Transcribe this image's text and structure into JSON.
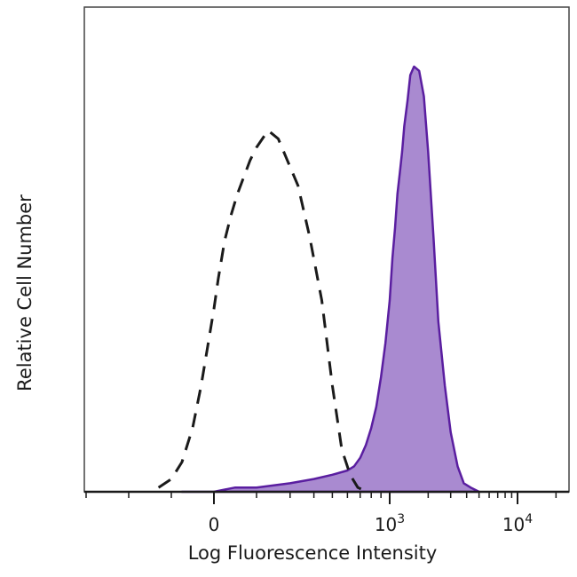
{
  "chart_data": {
    "type": "area",
    "xlabel": "Log Fluorescence Intensity",
    "ylabel": "Relative Cell Number",
    "x_scale": "biexponential",
    "ylim": [
      0,
      100
    ],
    "x_ticks": [
      {
        "base": "0",
        "exp": "",
        "value": 0
      },
      {
        "base": "10",
        "exp": "3",
        "value": 1000
      },
      {
        "base": "10",
        "exp": "4",
        "value": 10000
      }
    ],
    "grid": false,
    "legend": "none",
    "colors": {
      "fill": "#a98ad0",
      "stroke": "#5a1ea0",
      "control": "#1a1a1a",
      "axis": "#1a1a1a",
      "frame": "#444444"
    },
    "series": [
      {
        "style": "dashed",
        "x": [
          -260,
          -200,
          -150,
          -100,
          -60,
          -20,
          0,
          20,
          50,
          80,
          110,
          140,
          170,
          200,
          230,
          260,
          290,
          330,
          380,
          440,
          500,
          560,
          620,
          680,
          760
        ],
        "y": [
          1,
          3,
          7,
          15,
          25,
          37,
          43,
          50,
          59,
          65,
          70,
          74,
          78,
          81,
          85,
          83,
          78,
          72,
          60,
          45,
          25,
          10,
          4,
          1,
          0
        ]
      },
      {
        "style": "filled",
        "x": [
          -150,
          0,
          100,
          200,
          300,
          400,
          500,
          600,
          650,
          700,
          750,
          800,
          850,
          900,
          950,
          1000,
          1050,
          1100,
          1150,
          1200,
          1250,
          1300,
          1380,
          1450,
          1550,
          1700,
          1850,
          2000,
          2200,
          2400,
          2700,
          3000,
          3400,
          3800,
          4300,
          5000
        ],
        "y": [
          0,
          0,
          1,
          1,
          2,
          3,
          4,
          5,
          6,
          8,
          11,
          15,
          20,
          27,
          35,
          45,
          55,
          62,
          70,
          75,
          80,
          86,
          92,
          98,
          100,
          99,
          93,
          80,
          60,
          40,
          25,
          14,
          6,
          2,
          1,
          0
        ]
      }
    ]
  }
}
